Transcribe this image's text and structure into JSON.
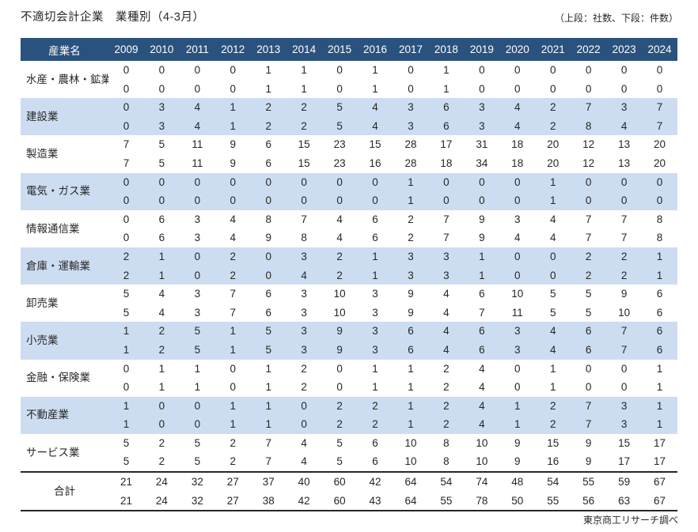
{
  "title": "不適切会計企業　業種別（4-3月）",
  "note": "（上段：社数、下段：件数）",
  "footer": "東京商工リサーチ調べ",
  "colors": {
    "header_bg": "#2a527e",
    "header_text": "#ffffff",
    "band_bg": "#cdddf1",
    "text": "#262626"
  },
  "chart_data": {
    "type": "table",
    "title": "不適切会計企業　業種別（4-3月）",
    "subtitle": "（上段：社数、下段：件数）",
    "label_header": "産業名",
    "upper_meaning": "社数",
    "lower_meaning": "件数",
    "years": [
      "2009",
      "2010",
      "2011",
      "2012",
      "2013",
      "2014",
      "2015",
      "2016",
      "2017",
      "2018",
      "2019",
      "2020",
      "2021",
      "2022",
      "2023",
      "2024"
    ],
    "rows": [
      {
        "label": "水産・農林・鉱業",
        "upper": [
          0,
          0,
          0,
          0,
          1,
          1,
          0,
          1,
          0,
          1,
          0,
          0,
          0,
          0,
          0,
          0
        ],
        "lower": [
          0,
          0,
          0,
          0,
          1,
          1,
          0,
          1,
          0,
          1,
          0,
          0,
          0,
          0,
          0,
          0
        ]
      },
      {
        "label": "建設業",
        "upper": [
          0,
          3,
          4,
          1,
          2,
          2,
          5,
          4,
          3,
          6,
          3,
          4,
          2,
          7,
          3,
          7
        ],
        "lower": [
          0,
          3,
          4,
          1,
          2,
          2,
          5,
          4,
          3,
          6,
          3,
          4,
          2,
          8,
          4,
          7
        ]
      },
      {
        "label": "製造業",
        "upper": [
          7,
          5,
          11,
          9,
          6,
          15,
          23,
          15,
          28,
          17,
          31,
          18,
          20,
          12,
          13,
          20
        ],
        "lower": [
          7,
          5,
          11,
          9,
          6,
          15,
          23,
          16,
          28,
          18,
          34,
          18,
          20,
          12,
          13,
          20
        ]
      },
      {
        "label": "電気・ガス業",
        "upper": [
          0,
          0,
          0,
          0,
          0,
          0,
          0,
          0,
          1,
          0,
          0,
          0,
          1,
          0,
          0,
          0
        ],
        "lower": [
          0,
          0,
          0,
          0,
          0,
          0,
          0,
          0,
          1,
          0,
          0,
          0,
          1,
          0,
          0,
          0
        ]
      },
      {
        "label": "情報通信業",
        "upper": [
          0,
          6,
          3,
          4,
          8,
          7,
          4,
          6,
          2,
          7,
          9,
          3,
          4,
          7,
          7,
          8
        ],
        "lower": [
          0,
          6,
          3,
          4,
          9,
          8,
          4,
          6,
          2,
          7,
          9,
          4,
          4,
          7,
          7,
          8
        ]
      },
      {
        "label": "倉庫・運輸業",
        "upper": [
          2,
          1,
          0,
          2,
          0,
          3,
          2,
          1,
          3,
          3,
          1,
          0,
          0,
          2,
          2,
          1
        ],
        "lower": [
          2,
          1,
          0,
          2,
          0,
          4,
          2,
          1,
          3,
          3,
          1,
          0,
          0,
          2,
          2,
          1
        ]
      },
      {
        "label": "卸売業",
        "upper": [
          5,
          4,
          3,
          7,
          6,
          3,
          10,
          3,
          9,
          4,
          6,
          10,
          5,
          5,
          9,
          6
        ],
        "lower": [
          5,
          4,
          3,
          7,
          6,
          3,
          10,
          3,
          9,
          4,
          7,
          11,
          5,
          5,
          10,
          6
        ]
      },
      {
        "label": "小売業",
        "upper": [
          1,
          2,
          5,
          1,
          5,
          3,
          9,
          3,
          6,
          4,
          6,
          3,
          4,
          6,
          7,
          6
        ],
        "lower": [
          1,
          2,
          5,
          1,
          5,
          3,
          9,
          3,
          6,
          4,
          6,
          3,
          4,
          6,
          7,
          6
        ]
      },
      {
        "label": "金融・保険業",
        "upper": [
          0,
          1,
          1,
          0,
          1,
          2,
          0,
          1,
          1,
          2,
          4,
          0,
          1,
          0,
          0,
          1
        ],
        "lower": [
          0,
          1,
          1,
          0,
          1,
          2,
          0,
          1,
          1,
          2,
          4,
          0,
          1,
          0,
          0,
          1
        ]
      },
      {
        "label": "不動産業",
        "upper": [
          1,
          0,
          0,
          1,
          1,
          0,
          2,
          2,
          1,
          2,
          4,
          1,
          2,
          7,
          3,
          1
        ],
        "lower": [
          1,
          0,
          0,
          1,
          1,
          0,
          2,
          2,
          1,
          2,
          4,
          1,
          2,
          7,
          3,
          1
        ]
      },
      {
        "label": "サービス業",
        "upper": [
          5,
          2,
          5,
          2,
          7,
          4,
          5,
          6,
          10,
          8,
          10,
          9,
          15,
          9,
          15,
          17
        ],
        "lower": [
          5,
          2,
          5,
          2,
          7,
          4,
          5,
          6,
          10,
          8,
          10,
          9,
          16,
          9,
          17,
          17
        ]
      },
      {
        "label": "合計",
        "upper": [
          21,
          24,
          32,
          27,
          37,
          40,
          60,
          42,
          64,
          54,
          74,
          48,
          54,
          55,
          59,
          67
        ],
        "lower": [
          21,
          24,
          32,
          27,
          38,
          42,
          60,
          43,
          64,
          55,
          78,
          50,
          55,
          56,
          63,
          67
        ]
      }
    ]
  }
}
